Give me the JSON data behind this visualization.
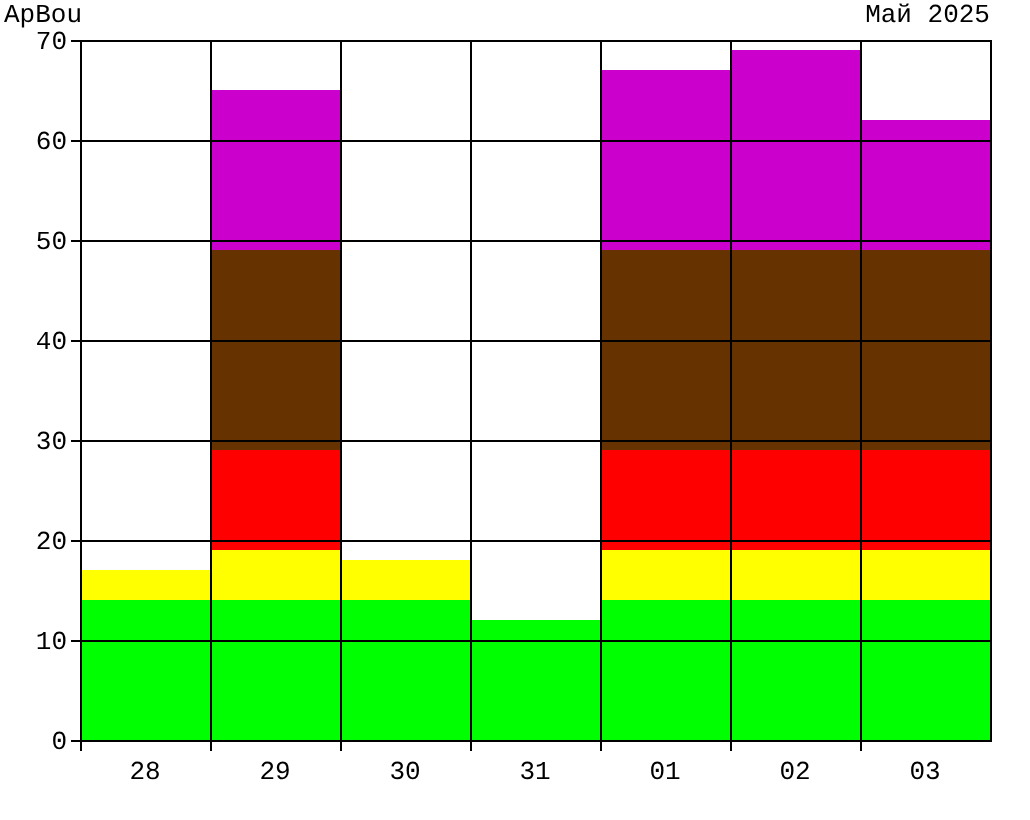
{
  "chart_data": {
    "type": "bar",
    "title": "ApBou",
    "subtitle": "Май 2025",
    "categories": [
      "28",
      "29",
      "30",
      "31",
      "01",
      "02",
      "03"
    ],
    "stacked": true,
    "series": [
      {
        "color": "#00ff00",
        "values": [
          14,
          14,
          14,
          12,
          14,
          14,
          14
        ]
      },
      {
        "color": "#ffff00",
        "values": [
          3,
          5,
          4,
          null,
          5,
          5,
          5
        ]
      },
      {
        "color": "#ff0000",
        "values": [
          null,
          10,
          null,
          null,
          10,
          10,
          10
        ]
      },
      {
        "color": "#663300",
        "values": [
          null,
          20,
          null,
          null,
          20,
          20,
          20
        ]
      },
      {
        "color": "#cc00cc",
        "values": [
          null,
          16,
          null,
          null,
          18,
          20,
          13
        ]
      }
    ],
    "ylim": [
      0,
      70
    ],
    "yticks": [
      0,
      10,
      20,
      30,
      40,
      50,
      60,
      70
    ],
    "grid": true
  }
}
